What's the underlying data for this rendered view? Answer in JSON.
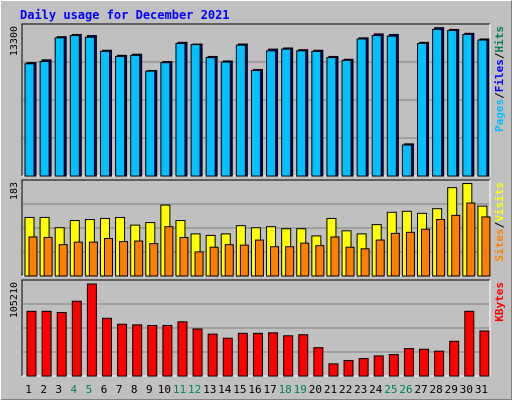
{
  "chart_data": [
    {
      "type": "bar",
      "title": "Daily usage for December 2021",
      "categories": [
        "1",
        "2",
        "3",
        "4",
        "5",
        "6",
        "7",
        "8",
        "9",
        "10",
        "11",
        "12",
        "13",
        "14",
        "15",
        "16",
        "17",
        "18",
        "19",
        "20",
        "21",
        "22",
        "23",
        "24",
        "25",
        "26",
        "27",
        "28",
        "29",
        "30",
        "31"
      ],
      "weekend_days": [
        "4",
        "5",
        "11",
        "12",
        "18",
        "19",
        "25",
        "26"
      ],
      "ytick_label": "13300",
      "ylim": [
        0,
        13300
      ],
      "legend": [
        "Pages",
        "Files",
        "Hits"
      ],
      "series": [
        {
          "name": "Hits",
          "color": "#00805c",
          "values": [
            10050,
            10300,
            12350,
            12550,
            12450,
            11150,
            10700,
            10800,
            9350,
            10150,
            11850,
            11700,
            10600,
            10200,
            11700,
            9450,
            11250,
            11350,
            11200,
            11150,
            10600,
            10350,
            12250,
            12600,
            12550,
            2850,
            11850,
            13150,
            13000,
            12650,
            12150
          ]
        },
        {
          "name": "Files",
          "color": "#0000ff",
          "values": [
            9950,
            10150,
            12250,
            12450,
            12300,
            11050,
            10600,
            10700,
            9300,
            10050,
            11750,
            11650,
            10500,
            10100,
            11600,
            9350,
            11100,
            11250,
            11100,
            11050,
            10500,
            10250,
            12150,
            12450,
            12400,
            2750,
            11750,
            13000,
            12900,
            12550,
            12050
          ]
        },
        {
          "name": "Pages",
          "color": "#00c0ff",
          "values": [
            9950,
            10150,
            12250,
            12450,
            12300,
            11050,
            10600,
            10700,
            9300,
            10050,
            11750,
            11650,
            10500,
            10100,
            11600,
            9350,
            11100,
            11250,
            11100,
            11050,
            10500,
            10250,
            12150,
            12450,
            12400,
            2750,
            11750,
            13000,
            12900,
            12550,
            12050
          ]
        }
      ]
    },
    {
      "type": "bar",
      "ytick_label": "183",
      "ylim": [
        0,
        183
      ],
      "legend": [
        "Sites",
        "Visits"
      ],
      "series": [
        {
          "name": "Visits",
          "color": "#ffff00",
          "values": [
            114,
            114,
            94,
            108,
            110,
            112,
            114,
            99,
            104,
            138,
            108,
            82,
            79,
            82,
            98,
            94,
            96,
            92,
            92,
            78,
            112,
            88,
            82,
            100,
            124,
            126,
            122,
            131,
            172,
            180,
            136
          ]
        },
        {
          "name": "Sites",
          "color": "#ff8000",
          "values": [
            76,
            75,
            61,
            66,
            66,
            73,
            67,
            68,
            63,
            96,
            75,
            47,
            56,
            61,
            60,
            70,
            57,
            57,
            64,
            59,
            76,
            56,
            53,
            70,
            83,
            85,
            91,
            110,
            118,
            142,
            115
          ]
        }
      ]
    },
    {
      "type": "bar",
      "ytick_label": "105210",
      "ylim": [
        0,
        105210
      ],
      "legend": [
        "KBytes"
      ],
      "series": [
        {
          "name": "KBytes",
          "color": "#ff0000",
          "values": [
            74000,
            74000,
            72600,
            85500,
            105210,
            66000,
            59200,
            58500,
            57800,
            57800,
            62000,
            53700,
            47900,
            43200,
            48800,
            48800,
            49400,
            46000,
            47200,
            32400,
            13900,
            17700,
            20000,
            23000,
            24500,
            31300,
            30600,
            28400,
            39700,
            74000,
            51500
          ]
        }
      ]
    }
  ]
}
